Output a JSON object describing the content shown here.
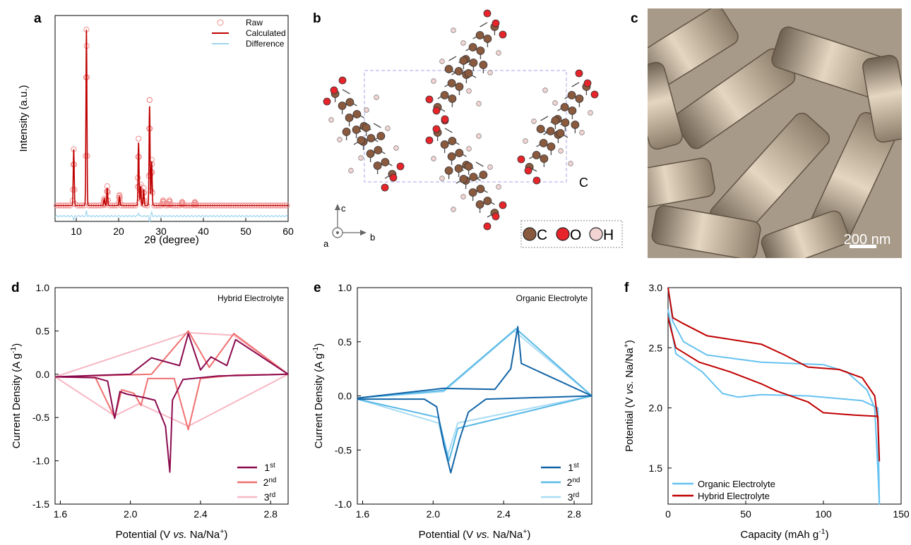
{
  "panels": {
    "a": {
      "label": "a"
    },
    "b": {
      "label": "b",
      "axis_a": "a",
      "axis_b": "b",
      "axis_c": "c",
      "cell_label": "C",
      "legend": [
        {
          "label": "C",
          "color": "#8a5a3f"
        },
        {
          "label": "O",
          "color": "#e8242b"
        },
        {
          "label": "H",
          "color": "#f2d5d3"
        }
      ]
    },
    "c": {
      "label": "c",
      "scale_bar": "200 nm",
      "background": "#a89a88"
    },
    "d": {
      "label": "d"
    },
    "e": {
      "label": "e"
    },
    "f": {
      "label": "f"
    }
  },
  "colors": {
    "raw": "#f08c8c",
    "calculated": "#c00000",
    "difference": "#9fd6ef",
    "hybrid_1": "#8b0a4e",
    "hybrid_2": "#f07070",
    "hybrid_3": "#f7b7c3",
    "organic_1": "#1264a6",
    "organic_2": "#58b8e6",
    "organic_3": "#a8dcf4",
    "f_organic": "#66c2f0",
    "f_hybrid": "#c00000"
  },
  "chart_data": [
    {
      "id": "a",
      "type": "line",
      "title": "",
      "xlabel": "2θ (degree)",
      "ylabel": "Intensity (a.u.)",
      "xlim": [
        5,
        60
      ],
      "ylim": [
        -0.09,
        1.08
      ],
      "xticks": [
        10,
        20,
        30,
        40,
        50,
        60
      ],
      "legend_position": "top-right",
      "series": [
        {
          "name": "Raw",
          "style": "circles",
          "peaks": [
            [
              9.4,
              0.32
            ],
            [
              12.4,
              1.0
            ],
            [
              16.6,
              0.04
            ],
            [
              17.3,
              0.11
            ],
            [
              20.2,
              0.06
            ],
            [
              24.7,
              0.38
            ],
            [
              25.2,
              0.12
            ],
            [
              25.9,
              0.1
            ],
            [
              27.3,
              0.6
            ],
            [
              27.8,
              0.26
            ],
            [
              30.5,
              0.03
            ],
            [
              32.0,
              0.03
            ],
            [
              35.0,
              0.02
            ],
            [
              38.0,
              0.02
            ]
          ],
          "baseline": 0.0
        },
        {
          "name": "Calculated",
          "style": "line",
          "peaks": [
            [
              9.4,
              0.32
            ],
            [
              12.4,
              1.0
            ],
            [
              16.6,
              0.04
            ],
            [
              17.3,
              0.1
            ],
            [
              20.2,
              0.05
            ],
            [
              24.7,
              0.36
            ],
            [
              25.2,
              0.11
            ],
            [
              25.9,
              0.09
            ],
            [
              27.3,
              0.57
            ],
            [
              27.8,
              0.25
            ]
          ],
          "baseline": 0.0
        },
        {
          "name": "Difference",
          "style": "line",
          "baseline": -0.06
        }
      ]
    },
    {
      "id": "d",
      "type": "line",
      "title": "Hybrid Electrolyte",
      "xlabel": "Potential (V vs. Na/Na+)",
      "ylabel": "Current Density (A g-1)",
      "xlim": [
        1.57,
        2.9
      ],
      "ylim": [
        -1.5,
        1.0
      ],
      "xticks": [
        1.6,
        2.0,
        2.4,
        2.8
      ],
      "yticks": [
        -1.5,
        -1.0,
        -0.5,
        0.0,
        0.5,
        1.0
      ],
      "legend_position": "bottom-right",
      "series": [
        {
          "name": "1",
          "sup": "st",
          "points": [
            [
              1.57,
              -0.03
            ],
            [
              1.8,
              -0.04
            ],
            [
              1.87,
              -0.08
            ],
            [
              1.91,
              -0.51
            ],
            [
              1.94,
              -0.2
            ],
            [
              1.98,
              -0.23
            ],
            [
              2.03,
              -0.25
            ],
            [
              2.08,
              -0.27
            ],
            [
              2.14,
              -0.3
            ],
            [
              2.2,
              -0.6
            ],
            [
              2.225,
              -1.13
            ],
            [
              2.24,
              -0.3
            ],
            [
              2.3,
              -0.06
            ],
            [
              2.5,
              -0.02
            ],
            [
              2.9,
              0.0
            ],
            [
              2.6,
              0.4
            ],
            [
              2.55,
              0.1
            ],
            [
              2.46,
              0.2
            ],
            [
              2.4,
              0.05
            ],
            [
              2.33,
              0.47
            ],
            [
              2.28,
              0.1
            ],
            [
              2.12,
              0.19
            ],
            [
              2.0,
              0.0
            ],
            [
              1.57,
              -0.03
            ]
          ]
        },
        {
          "name": "2",
          "sup": "nd",
          "points": [
            [
              1.57,
              -0.03
            ],
            [
              1.8,
              -0.04
            ],
            [
              1.91,
              -0.5
            ],
            [
              1.95,
              -0.18
            ],
            [
              2.02,
              -0.22
            ],
            [
              2.06,
              -0.36
            ],
            [
              2.1,
              -0.05
            ],
            [
              2.25,
              -0.05
            ],
            [
              2.33,
              -0.64
            ],
            [
              2.4,
              -0.05
            ],
            [
              2.6,
              -0.01
            ],
            [
              2.9,
              0.0
            ],
            [
              2.59,
              0.47
            ],
            [
              2.45,
              0.08
            ],
            [
              2.33,
              0.5
            ],
            [
              2.12,
              0.0
            ],
            [
              1.57,
              -0.03
            ]
          ]
        },
        {
          "name": "3",
          "sup": "rd",
          "points": [
            [
              1.57,
              -0.03
            ],
            [
              1.91,
              -0.48
            ],
            [
              2.05,
              -0.34
            ],
            [
              2.33,
              -0.6
            ],
            [
              2.9,
              0.0
            ],
            [
              2.59,
              0.45
            ],
            [
              2.33,
              0.48
            ],
            [
              1.57,
              -0.03
            ]
          ]
        }
      ]
    },
    {
      "id": "e",
      "type": "line",
      "title": "Organic Electrolyte",
      "xlabel": "Potential (V vs. Na/Na+)",
      "ylabel": "Current Density (A g-1)",
      "xlim": [
        1.57,
        2.9
      ],
      "ylim": [
        -1.0,
        1.0
      ],
      "xticks": [
        1.6,
        2.0,
        2.4,
        2.8
      ],
      "yticks": [
        -1.0,
        -0.5,
        0.0,
        0.5,
        1.0
      ],
      "legend_position": "bottom-right",
      "series": [
        {
          "name": "1",
          "sup": "st",
          "points": [
            [
              1.57,
              -0.03
            ],
            [
              1.95,
              -0.03
            ],
            [
              2.02,
              -0.1
            ],
            [
              2.06,
              -0.45
            ],
            [
              2.1,
              -0.71
            ],
            [
              2.15,
              -0.4
            ],
            [
              2.2,
              -0.15
            ],
            [
              2.3,
              -0.03
            ],
            [
              2.9,
              0.0
            ],
            [
              2.5,
              0.3
            ],
            [
              2.48,
              0.64
            ],
            [
              2.44,
              0.25
            ],
            [
              2.35,
              0.06
            ],
            [
              2.06,
              0.07
            ],
            [
              1.57,
              -0.02
            ]
          ]
        },
        {
          "name": "2",
          "sup": "nd",
          "points": [
            [
              1.57,
              -0.03
            ],
            [
              2.03,
              -0.2
            ],
            [
              2.09,
              -0.6
            ],
            [
              2.14,
              -0.3
            ],
            [
              2.9,
              0.0
            ],
            [
              2.47,
              0.62
            ],
            [
              2.06,
              0.05
            ],
            [
              1.57,
              -0.02
            ]
          ]
        },
        {
          "name": "3",
          "sup": "rd",
          "points": [
            [
              1.57,
              -0.03
            ],
            [
              2.03,
              -0.25
            ],
            [
              2.08,
              -0.56
            ],
            [
              2.14,
              -0.25
            ],
            [
              2.9,
              0.0
            ],
            [
              2.46,
              0.6
            ],
            [
              2.06,
              0.04
            ],
            [
              1.57,
              -0.02
            ]
          ]
        }
      ]
    },
    {
      "id": "f",
      "type": "line",
      "title": "",
      "xlabel": "Capacity (mAh g-1)",
      "ylabel": "Potential (V vs. Na/Na+)",
      "xlim": [
        0,
        150
      ],
      "ylim": [
        1.2,
        3.0
      ],
      "xticks": [
        0,
        50,
        100,
        150
      ],
      "yticks": [
        1.5,
        2.0,
        2.5,
        3.0
      ],
      "legend_position": "bottom-left",
      "series": [
        {
          "name": "Organic Electrolyte",
          "points": [
            [
              0,
              3.0
            ],
            [
              3,
              2.72
            ],
            [
              10,
              2.55
            ],
            [
              25,
              2.44
            ],
            [
              60,
              2.38
            ],
            [
              100,
              2.36
            ],
            [
              115,
              2.3
            ],
            [
              128,
              2.15
            ],
            [
              133,
              2.0
            ],
            [
              135,
              1.5
            ],
            [
              136,
              1.2
            ],
            [
              135,
              2.0
            ],
            [
              125,
              2.06
            ],
            [
              90,
              2.1
            ],
            [
              60,
              2.11
            ],
            [
              45,
              2.09
            ],
            [
              35,
              2.12
            ],
            [
              22,
              2.3
            ],
            [
              5,
              2.45
            ],
            [
              0,
              2.82
            ]
          ]
        },
        {
          "name": "Hybrid Electrolyte",
          "points": [
            [
              0,
              3.0
            ],
            [
              3,
              2.75
            ],
            [
              10,
              2.7
            ],
            [
              25,
              2.6
            ],
            [
              60,
              2.53
            ],
            [
              75,
              2.44
            ],
            [
              90,
              2.34
            ],
            [
              110,
              2.32
            ],
            [
              125,
              2.25
            ],
            [
              133,
              2.1
            ],
            [
              135,
              1.9
            ],
            [
              136,
              1.56
            ],
            [
              135,
              1.93
            ],
            [
              120,
              1.94
            ],
            [
              100,
              1.96
            ],
            [
              90,
              2.05
            ],
            [
              70,
              2.14
            ],
            [
              60,
              2.2
            ],
            [
              40,
              2.3
            ],
            [
              20,
              2.38
            ],
            [
              5,
              2.5
            ],
            [
              0,
              2.75
            ]
          ]
        }
      ]
    }
  ]
}
